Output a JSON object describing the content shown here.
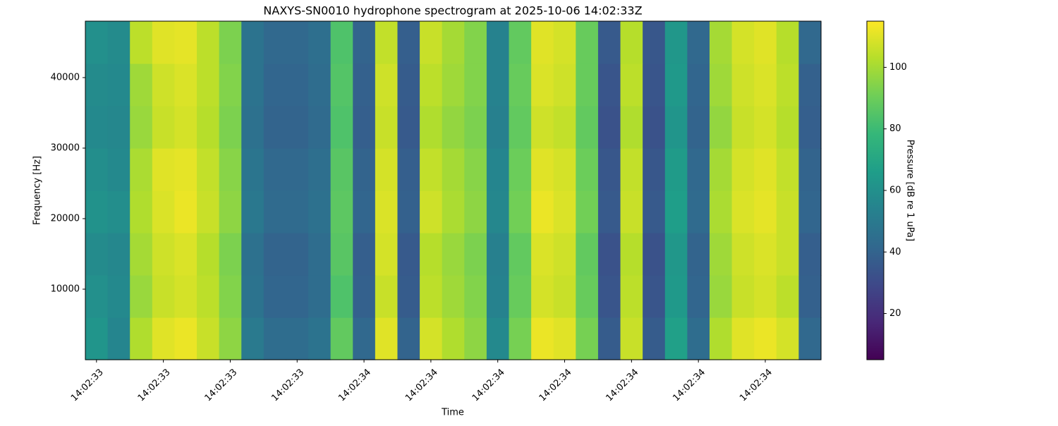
{
  "chart_data": {
    "type": "heatmap",
    "title": "NAXYS-SN0010 hydrophone spectrogram at 2025-10-06 14:02:33Z",
    "xlabel": "Time",
    "ylabel": "Frequency [Hz]",
    "categories": [
      "14:02:33",
      null,
      null,
      "14:02:33",
      null,
      null,
      "14:02:33",
      null,
      null,
      "14:02:33",
      null,
      null,
      "14:02:34",
      null,
      null,
      "14:02:34",
      null,
      null,
      "14:02:34",
      null,
      null,
      "14:02:34",
      null,
      null,
      "14:02:34",
      null,
      null,
      "14:02:34",
      null,
      null,
      "14:02:34",
      null,
      null
    ],
    "y": [
      3000,
      9000,
      15000,
      21000,
      27000,
      33000,
      39000,
      45000
    ],
    "ylim": [
      0,
      48000
    ],
    "yticks": [
      10000,
      20000,
      30000,
      40000
    ],
    "z": [
      [
        62,
        55,
        102,
        110,
        112,
        106,
        96,
        50,
        44,
        44,
        47,
        88,
        42,
        110,
        40,
        108,
        102,
        96,
        57,
        92,
        112,
        110,
        92,
        37,
        106,
        37,
        67,
        44,
        102,
        110,
        112,
        108,
        42
      ],
      [
        60,
        57,
        98,
        106,
        108,
        104,
        94,
        47,
        41,
        41,
        44,
        84,
        39,
        106,
        37,
        104,
        99,
        94,
        54,
        89,
        108,
        106,
        89,
        34,
        104,
        34,
        64,
        41,
        98,
        106,
        108,
        104,
        39
      ],
      [
        58,
        56,
        100,
        107,
        109,
        103,
        93,
        46,
        40,
        40,
        44,
        86,
        38,
        108,
        36,
        103,
        98,
        93,
        53,
        88,
        109,
        107,
        88,
        33,
        103,
        33,
        63,
        40,
        99,
        107,
        109,
        106,
        38
      ],
      [
        61,
        59,
        102,
        109,
        112,
        106,
        96,
        49,
        43,
        43,
        46,
        87,
        41,
        109,
        39,
        107,
        101,
        96,
        56,
        91,
        112,
        109,
        91,
        36,
        106,
        36,
        66,
        43,
        101,
        109,
        111,
        106,
        41
      ],
      [
        59,
        57,
        101,
        110,
        111,
        105,
        95,
        48,
        42,
        42,
        45,
        86,
        40,
        108,
        38,
        105,
        100,
        95,
        55,
        90,
        110,
        108,
        90,
        35,
        105,
        35,
        65,
        42,
        100,
        108,
        110,
        105,
        40
      ],
      [
        57,
        56,
        98,
        106,
        108,
        103,
        93,
        46,
        40,
        40,
        43,
        84,
        38,
        106,
        36,
        102,
        97,
        93,
        53,
        88,
        107,
        105,
        88,
        33,
        102,
        33,
        62,
        40,
        97,
        106,
        108,
        103,
        38
      ],
      [
        58,
        57,
        99,
        107,
        109,
        104,
        94,
        47,
        41,
        41,
        44,
        85,
        39,
        107,
        37,
        104,
        99,
        94,
        54,
        89,
        109,
        107,
        89,
        34,
        104,
        34,
        64,
        41,
        99,
        107,
        109,
        104,
        39
      ],
      [
        60,
        58,
        104,
        110,
        111,
        104,
        93,
        47,
        42,
        42,
        45,
        84,
        40,
        105,
        38,
        106,
        100,
        94,
        54,
        88,
        110,
        108,
        89,
        36,
        103,
        35,
        63,
        42,
        100,
        108,
        110,
        103,
        42
      ]
    ],
    "colorbar": {
      "label": "Pressure [dB re 1 uPa]",
      "colormap": "viridis",
      "lim": [
        5,
        115
      ],
      "ticks": [
        20,
        40,
        60,
        80,
        100
      ]
    }
  }
}
